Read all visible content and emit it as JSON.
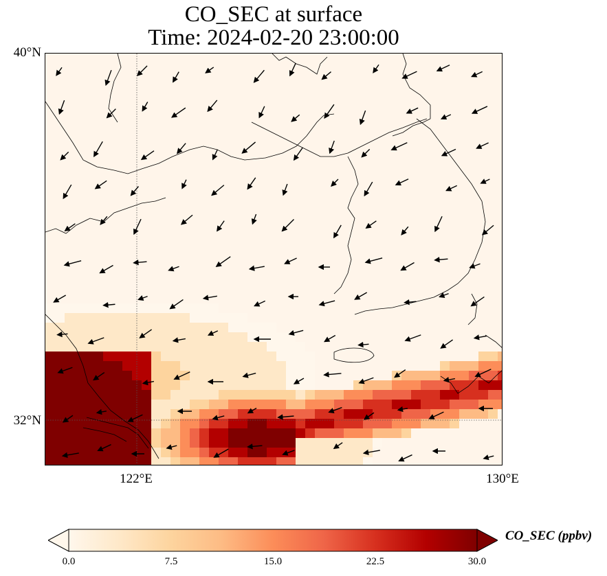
{
  "title": {
    "line1": "CO_SEC at surface",
    "line2": "Time: 2024-02-20 23:00:00"
  },
  "map": {
    "lat_range": [
      31,
      40
    ],
    "lon_range": [
      120,
      130
    ],
    "lat_ticks": [
      {
        "value": 40,
        "label": "40°N"
      },
      {
        "value": 32,
        "label": "32°N"
      }
    ],
    "lon_ticks": [
      {
        "value": 122,
        "label": "122°E"
      },
      {
        "value": 130,
        "label": "130°E"
      }
    ],
    "gridlines": {
      "lat": [
        32
      ],
      "lon": [
        122
      ]
    },
    "field": "CO_SEC",
    "units": "ppbv",
    "colormap": "OrRd",
    "colors": [
      "#fff7ec",
      "#fee8c8",
      "#fdd49e",
      "#fdbb84",
      "#fc8d59",
      "#ef6548",
      "#d7301f",
      "#b30000",
      "#7f0000"
    ],
    "notes": "High concentrations along the southern edge (near 31-33°N) with low values over the Korean peninsula and Yellow Sea; wind vectors mostly blowing toward the southwest."
  },
  "colorbar": {
    "label": "CO_SEC (ppbv)",
    "min": 0,
    "max": 30,
    "ticks": [
      "0.0",
      "7.5",
      "15.0",
      "22.5",
      "30.0"
    ],
    "extend": "both"
  }
}
